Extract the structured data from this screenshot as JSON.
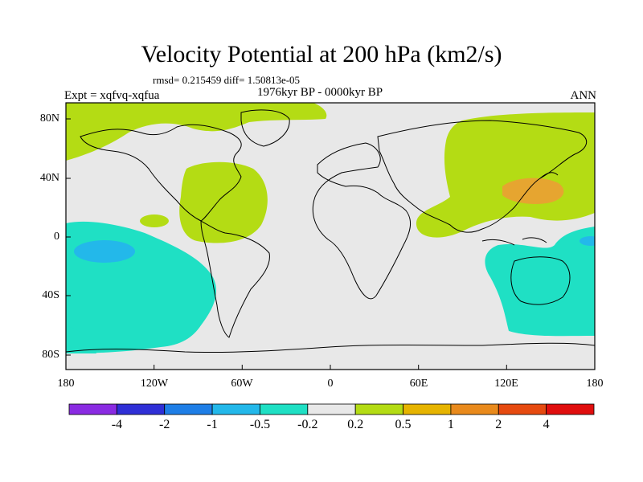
{
  "title": "Velocity Potential at 200 hPa (km2/s)",
  "stats": "rmsd= 0.215459 diff= 1.50813e-05",
  "experiment": "Expt = xqfvq-xqfua",
  "period": "1976kyr BP - 0000kyr BP",
  "season": "ANN",
  "lat_ticks": [
    "80N",
    "40N",
    "0",
    "40S",
    "80S"
  ],
  "lon_ticks": [
    "180",
    "120W",
    "60W",
    "0",
    "60E",
    "120E",
    "180"
  ],
  "colorbar": {
    "colors": [
      "#8a2be2",
      "#2f2fd6",
      "#1e7ee6",
      "#23b8ea",
      "#1fe0c4",
      "#e8e8e8",
      "#b4dc14",
      "#e6b400",
      "#e98a1c",
      "#e64a10",
      "#e00e0e"
    ],
    "labels": [
      "-4",
      "-2",
      "-1",
      "-0.5",
      "-0.2",
      "0.2",
      "0.5",
      "1",
      "2",
      "4"
    ]
  },
  "map_colors": {
    "background": "#e8e8e8",
    "positive_weak": "#b4dc14",
    "positive_mid": "#e6a530",
    "negative_weak": "#1fe0c4",
    "negative_mid": "#23b8ea",
    "coast": "#000000"
  }
}
